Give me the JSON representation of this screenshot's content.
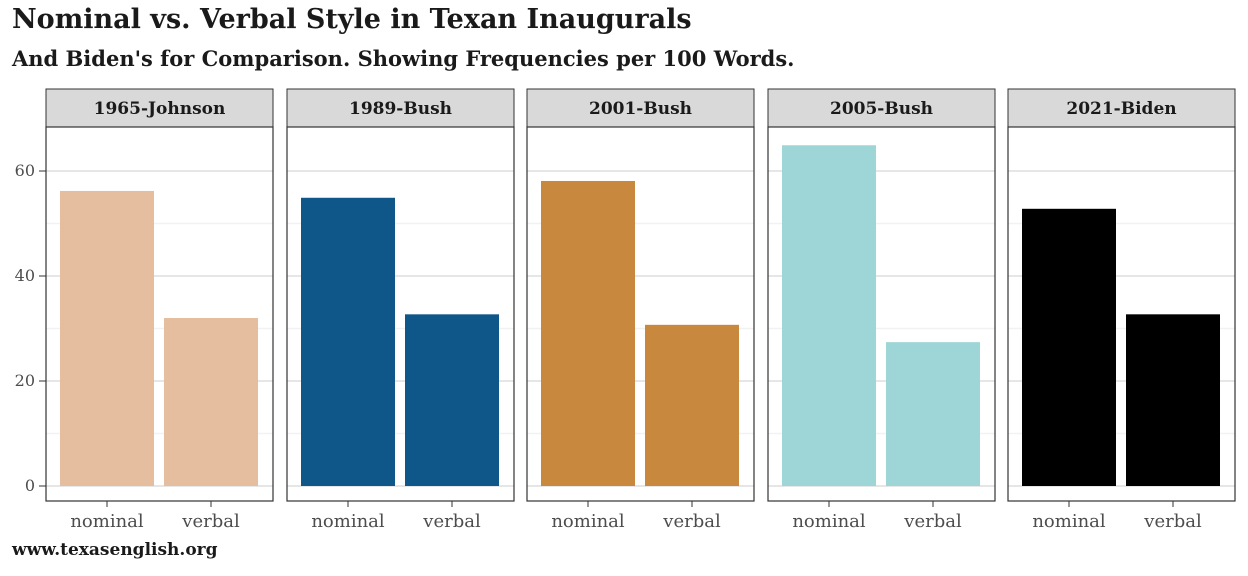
{
  "title": "Nominal vs. Verbal Style in Texan Inaugurals",
  "subtitle": "And Biden's for Comparison. Showing Frequencies per 100 Words.",
  "caption": "www.texasenglish.org",
  "chart_data": {
    "type": "bar",
    "facet": "small-multiples",
    "categories": [
      "nominal",
      "verbal"
    ],
    "ylim": [
      0,
      70
    ],
    "yticks": [
      0,
      20,
      40,
      60
    ],
    "grid": true,
    "panels": [
      {
        "label": "1965-Johnson",
        "color": "#E4BE9E",
        "values": [
          56.2,
          32.0
        ]
      },
      {
        "label": "1989-Bush",
        "color": "#0F5788",
        "values": [
          54.9,
          32.7
        ]
      },
      {
        "label": "2001-Bush",
        "color": "#C8893F",
        "values": [
          58.1,
          30.7
        ]
      },
      {
        "label": "2005-Bush",
        "color": "#9ED5D7",
        "values": [
          64.9,
          27.4
        ]
      },
      {
        "label": "2021-Biden",
        "color": "#000000",
        "values": [
          52.8,
          32.7
        ]
      }
    ]
  }
}
